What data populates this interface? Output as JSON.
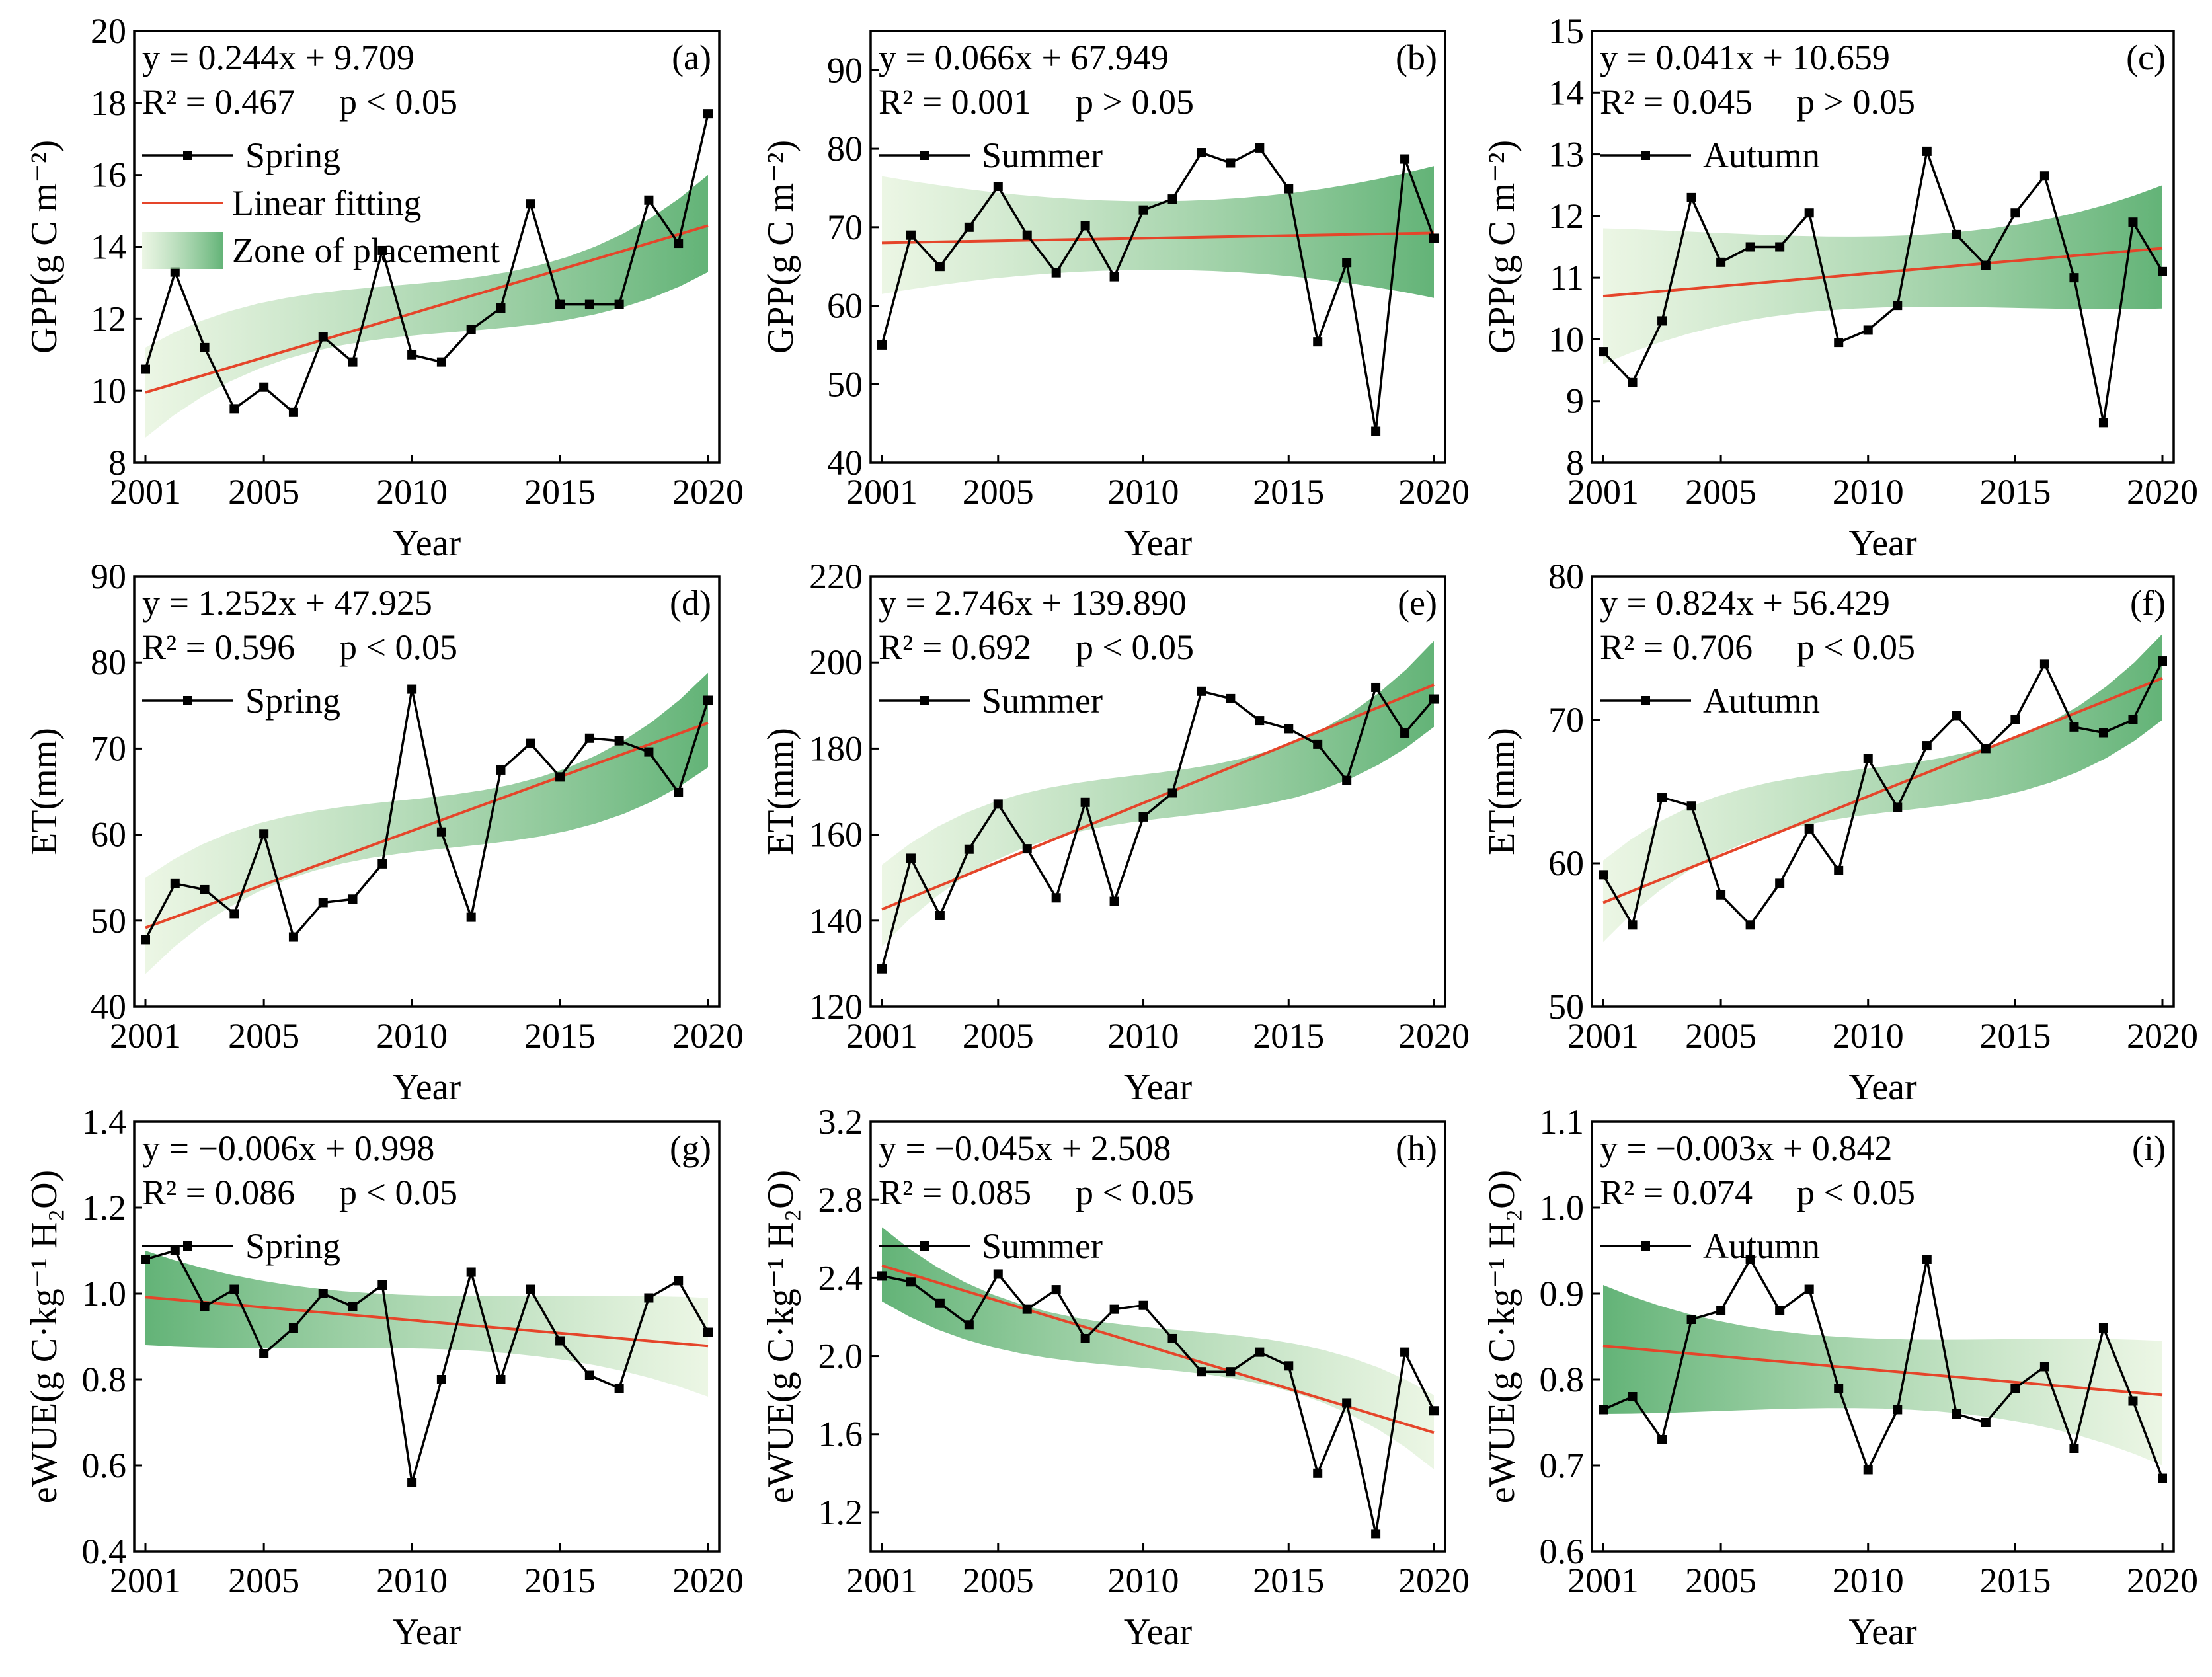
{
  "figure": {
    "legend_labels": {
      "spring": "Spring",
      "summer": "Summer",
      "autumn": "Autumn",
      "fit": "Linear fitting",
      "zone": "Zone of placement"
    },
    "colors": {
      "data": "#000000",
      "fit": "#e5452a",
      "zone_dark": "#2f9a4a",
      "zone_light": "#dcefcf"
    }
  },
  "chart_data": [
    {
      "id": "a",
      "type": "line",
      "letter": "(a)",
      "equation": "y = 0.244x + 9.709",
      "r2": "R² = 0.467",
      "p": "p < 0.05",
      "season": "Spring",
      "ylabel": "GPP(g C m⁻²)",
      "xlabel": "Year",
      "ylim": [
        8,
        20
      ],
      "yticks": [
        8,
        10,
        12,
        14,
        16,
        18,
        20
      ],
      "xlim": [
        2001,
        2020
      ],
      "xticks": [
        2001,
        2005,
        2010,
        2015,
        2020
      ],
      "fit": {
        "slope": 0.244,
        "intercept": 9.709
      },
      "zone": {
        "start": [
          8.7,
          11.2
        ],
        "end": [
          13.3,
          16.0
        ]
      },
      "full_legend": true,
      "x": [
        2001,
        2002,
        2003,
        2004,
        2005,
        2006,
        2007,
        2008,
        2009,
        2010,
        2011,
        2012,
        2013,
        2014,
        2015,
        2016,
        2017,
        2018,
        2019,
        2020
      ],
      "values": [
        10.6,
        13.3,
        11.2,
        9.5,
        10.1,
        9.4,
        11.5,
        10.8,
        13.9,
        11.0,
        10.8,
        11.7,
        12.3,
        15.2,
        12.4,
        12.4,
        12.4,
        15.3,
        14.1,
        17.7
      ]
    },
    {
      "id": "b",
      "type": "line",
      "letter": "(b)",
      "equation": "y = 0.066x + 67.949",
      "r2": "R² = 0.001",
      "p": "p > 0.05",
      "season": "Summer",
      "ylabel": "GPP(g C m⁻²)",
      "xlabel": "Year",
      "ylim": [
        40,
        95
      ],
      "yticks": [
        40,
        50,
        60,
        70,
        80,
        90
      ],
      "xlim": [
        2001,
        2020
      ],
      "xticks": [
        2001,
        2005,
        2010,
        2015,
        2020
      ],
      "fit": {
        "slope": 0.066,
        "intercept": 67.949
      },
      "zone": {
        "start": [
          61.5,
          76.5
        ],
        "end": [
          61.0,
          77.8
        ]
      },
      "full_legend": false,
      "x": [
        2001,
        2002,
        2003,
        2004,
        2005,
        2006,
        2007,
        2008,
        2009,
        2010,
        2011,
        2012,
        2013,
        2014,
        2015,
        2016,
        2017,
        2018,
        2019,
        2020
      ],
      "values": [
        55.0,
        69.0,
        65.0,
        70.0,
        75.2,
        69.0,
        64.2,
        70.2,
        63.7,
        72.2,
        73.6,
        79.5,
        78.2,
        80.1,
        74.9,
        55.4,
        65.5,
        44.0,
        78.7,
        68.6
      ]
    },
    {
      "id": "c",
      "type": "line",
      "letter": "(c)",
      "equation": "y = 0.041x + 10.659",
      "r2": "R² = 0.045",
      "p": "p > 0.05",
      "season": "Autumn",
      "ylabel": "GPP(g C m⁻²)",
      "xlabel": "Year",
      "ylim": [
        8,
        15
      ],
      "yticks": [
        8,
        9,
        10,
        11,
        12,
        13,
        14,
        15
      ],
      "xlim": [
        2001,
        2020
      ],
      "xticks": [
        2001,
        2005,
        2010,
        2015,
        2020
      ],
      "fit": {
        "slope": 0.041,
        "intercept": 10.659
      },
      "zone": {
        "start": [
          9.6,
          11.8
        ],
        "end": [
          10.5,
          12.5
        ]
      },
      "full_legend": false,
      "x": [
        2001,
        2002,
        2003,
        2004,
        2005,
        2006,
        2007,
        2008,
        2009,
        2010,
        2011,
        2012,
        2013,
        2014,
        2015,
        2016,
        2017,
        2018,
        2019,
        2020
      ],
      "values": [
        9.8,
        9.3,
        10.3,
        12.3,
        11.25,
        11.5,
        11.5,
        12.05,
        9.95,
        10.15,
        10.55,
        13.05,
        11.7,
        11.2,
        12.05,
        12.65,
        11.0,
        8.65,
        11.9,
        11.1
      ]
    },
    {
      "id": "d",
      "type": "line",
      "letter": "(d)",
      "equation": "y = 1.252x + 47.925",
      "r2": "R² = 0.596",
      "p": "p < 0.05",
      "season": "Spring",
      "ylabel": "ET(mm)",
      "xlabel": "Year",
      "ylim": [
        40,
        90
      ],
      "yticks": [
        40,
        50,
        60,
        70,
        80,
        90
      ],
      "xlim": [
        2001,
        2020
      ],
      "xticks": [
        2001,
        2005,
        2010,
        2015,
        2020
      ],
      "fit": {
        "slope": 1.252,
        "intercept": 47.925
      },
      "zone": {
        "start": [
          43.8,
          55.0
        ],
        "end": [
          67.8,
          78.8
        ]
      },
      "full_legend": false,
      "x": [
        2001,
        2002,
        2003,
        2004,
        2005,
        2006,
        2007,
        2008,
        2009,
        2010,
        2011,
        2012,
        2013,
        2014,
        2015,
        2016,
        2017,
        2018,
        2019,
        2020
      ],
      "values": [
        47.8,
        54.3,
        53.6,
        50.8,
        60.1,
        48.1,
        52.1,
        52.5,
        56.6,
        76.9,
        60.3,
        50.4,
        67.5,
        70.6,
        66.7,
        71.2,
        70.9,
        69.6,
        64.9,
        75.6
      ]
    },
    {
      "id": "e",
      "type": "line",
      "letter": "(e)",
      "equation": "y = 2.746x + 139.890",
      "r2": "R² = 0.692",
      "p": "p <  0.05",
      "season": "Summer",
      "ylabel": "ET(mm)",
      "xlabel": "Year",
      "ylim": [
        120,
        220
      ],
      "yticks": [
        120,
        140,
        160,
        180,
        200,
        220
      ],
      "xlim": [
        2001,
        2020
      ],
      "xticks": [
        2001,
        2005,
        2010,
        2015,
        2020
      ],
      "fit": {
        "slope": 2.746,
        "intercept": 139.89
      },
      "zone": {
        "start": [
          134.0,
          153.0
        ],
        "end": [
          185.0,
          205.0
        ]
      },
      "full_legend": false,
      "x": [
        2001,
        2002,
        2003,
        2004,
        2005,
        2006,
        2007,
        2008,
        2009,
        2010,
        2011,
        2012,
        2013,
        2014,
        2015,
        2016,
        2017,
        2018,
        2019,
        2020
      ],
      "values": [
        128.8,
        154.5,
        141.2,
        156.6,
        167.1,
        156.7,
        145.3,
        167.5,
        144.5,
        164.1,
        169.7,
        193.3,
        191.6,
        186.5,
        184.6,
        181.0,
        172.6,
        194.2,
        183.6,
        191.5
      ]
    },
    {
      "id": "f",
      "type": "line",
      "letter": "(f)",
      "equation": "y = 0.824x + 56.429",
      "r2": "R² = 0.706",
      "p": "p <  0.05",
      "season": "Autumn",
      "ylabel": "ET(mm)",
      "xlabel": "Year",
      "ylim": [
        50,
        80
      ],
      "yticks": [
        50,
        60,
        70,
        80
      ],
      "xlim": [
        2001,
        2020
      ],
      "xticks": [
        2001,
        2005,
        2010,
        2015,
        2020
      ],
      "fit": {
        "slope": 0.824,
        "intercept": 56.429
      },
      "zone": {
        "start": [
          54.5,
          60.2
        ],
        "end": [
          70.0,
          76.0
        ]
      },
      "full_legend": false,
      "x": [
        2001,
        2002,
        2003,
        2004,
        2005,
        2006,
        2007,
        2008,
        2009,
        2010,
        2011,
        2012,
        2013,
        2014,
        2015,
        2016,
        2017,
        2018,
        2019,
        2020
      ],
      "values": [
        59.2,
        55.7,
        64.6,
        64.0,
        57.8,
        55.7,
        58.6,
        62.4,
        59.5,
        67.3,
        63.9,
        68.2,
        70.3,
        68.0,
        70.0,
        73.9,
        69.5,
        69.1,
        70.0,
        74.1
      ]
    },
    {
      "id": "g",
      "type": "line",
      "letter": "(g)",
      "equation": "y = −0.006x + 0.998",
      "r2": "R² = 0.086",
      "p": "p < 0.05",
      "season": "Spring",
      "ylabel": "eWUE(g C·kg⁻¹ H₂O)",
      "xlabel": "Year",
      "ylim": [
        0.4,
        1.4
      ],
      "yticks": [
        0.4,
        0.6,
        0.8,
        1.0,
        1.2,
        1.4
      ],
      "xlim": [
        2001,
        2020
      ],
      "xticks": [
        2001,
        2005,
        2010,
        2015,
        2020
      ],
      "fit": {
        "slope": -0.006,
        "intercept": 0.998
      },
      "zone": {
        "start": [
          0.88,
          1.1
        ],
        "end": [
          0.76,
          0.99
        ]
      },
      "full_legend": false,
      "x": [
        2001,
        2002,
        2003,
        2004,
        2005,
        2006,
        2007,
        2008,
        2009,
        2010,
        2011,
        2012,
        2013,
        2014,
        2015,
        2016,
        2017,
        2018,
        2019,
        2020
      ],
      "values": [
        1.08,
        1.1,
        0.97,
        1.01,
        0.86,
        0.92,
        1.0,
        0.97,
        1.02,
        0.56,
        0.8,
        1.05,
        0.8,
        1.01,
        0.89,
        0.81,
        0.78,
        0.99,
        1.03,
        0.91
      ]
    },
    {
      "id": "h",
      "type": "line",
      "letter": "(h)",
      "equation": "y = −0.045x + 2.508",
      "r2": "R² = 0.085",
      "p": "p <  0.05",
      "season": "Summer",
      "ylabel": "eWUE(g C·kg⁻¹ H₂O)",
      "xlabel": "Year",
      "ylim": [
        1.0,
        3.2
      ],
      "yticks": [
        1.2,
        1.6,
        2.0,
        2.4,
        2.8,
        3.2
      ],
      "xlim": [
        2001,
        2020
      ],
      "xticks": [
        2001,
        2005,
        2010,
        2015,
        2020
      ],
      "fit": {
        "slope": -0.045,
        "intercept": 2.508
      },
      "zone": {
        "start": [
          2.28,
          2.66
        ],
        "end": [
          1.42,
          1.8
        ]
      },
      "full_legend": false,
      "x": [
        2001,
        2002,
        2003,
        2004,
        2005,
        2006,
        2007,
        2008,
        2009,
        2010,
        2011,
        2012,
        2013,
        2014,
        2015,
        2016,
        2017,
        2018,
        2019,
        2020
      ],
      "values": [
        2.41,
        2.38,
        2.27,
        2.16,
        2.42,
        2.24,
        2.34,
        2.09,
        2.24,
        2.26,
        2.09,
        1.92,
        1.92,
        2.02,
        1.95,
        1.4,
        1.76,
        1.09,
        2.02,
        1.72
      ]
    },
    {
      "id": "i",
      "type": "line",
      "letter": "(i)",
      "equation": "y = −0.003x + 0.842",
      "r2": "R² = 0.074",
      "p": "p <  0.05",
      "season": "Autumn",
      "ylabel": "eWUE(g C·kg⁻¹ H₂O)",
      "xlabel": "Year",
      "ylim": [
        0.6,
        1.1
      ],
      "yticks": [
        0.6,
        0.7,
        0.8,
        0.9,
        1.0,
        1.1
      ],
      "xlim": [
        2001,
        2020
      ],
      "xticks": [
        2001,
        2005,
        2010,
        2015,
        2020
      ],
      "fit": {
        "slope": -0.003,
        "intercept": 0.842
      },
      "zone": {
        "start": [
          0.76,
          0.91
        ],
        "end": [
          0.7,
          0.845
        ]
      },
      "full_legend": false,
      "x": [
        2001,
        2002,
        2003,
        2004,
        2005,
        2006,
        2007,
        2008,
        2009,
        2010,
        2011,
        2012,
        2013,
        2014,
        2015,
        2016,
        2017,
        2018,
        2019,
        2020
      ],
      "values": [
        0.765,
        0.78,
        0.73,
        0.87,
        0.88,
        0.94,
        0.88,
        0.905,
        0.79,
        0.695,
        0.765,
        0.94,
        0.76,
        0.75,
        0.79,
        0.815,
        0.72,
        0.86,
        0.775,
        0.685
      ]
    }
  ]
}
